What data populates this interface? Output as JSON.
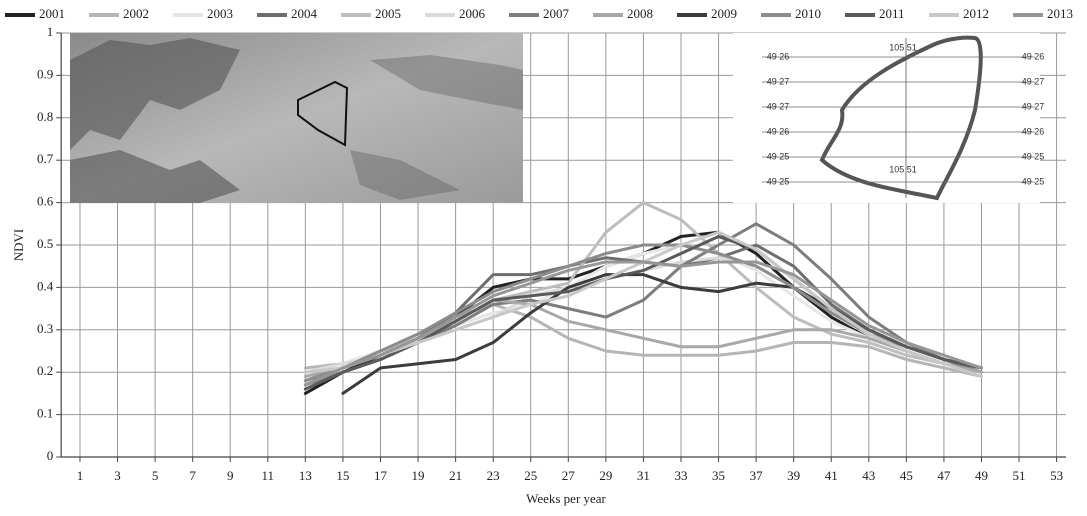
{
  "chart_data": {
    "type": "line",
    "x_label": "Weeks per year",
    "y_label": "NDVI",
    "x": [
      13,
      15,
      17,
      19,
      21,
      23,
      25,
      27,
      29,
      31,
      33,
      35,
      37,
      39,
      41,
      43,
      45,
      47,
      49
    ],
    "series": [
      {
        "name": "2001",
        "color": "#222222",
        "values": [
          0.15,
          0.2,
          0.24,
          0.28,
          0.33,
          0.4,
          0.42,
          0.42,
          0.45,
          0.48,
          0.52,
          0.53,
          0.48,
          0.4,
          0.33,
          0.28,
          0.25,
          0.22,
          null
        ]
      },
      {
        "name": "2002",
        "color": "#b5b5b5",
        "values": [
          0.21,
          0.22,
          0.25,
          0.29,
          0.33,
          0.36,
          0.33,
          0.28,
          0.25,
          0.24,
          0.24,
          0.24,
          0.25,
          0.27,
          0.27,
          0.26,
          0.23,
          0.21,
          0.19
        ]
      },
      {
        "name": "2003",
        "color": "#e6e6e6",
        "values": [
          0.2,
          0.22,
          0.25,
          0.28,
          0.31,
          0.34,
          0.36,
          0.4,
          0.45,
          0.48,
          0.5,
          0.48,
          0.44,
          0.38,
          0.32,
          0.28,
          0.25,
          0.22,
          0.2
        ]
      },
      {
        "name": "2004",
        "color": "#6e6e6e",
        "values": [
          0.18,
          0.21,
          0.24,
          0.28,
          0.34,
          0.43,
          0.43,
          0.45,
          0.47,
          0.46,
          0.45,
          0.47,
          0.5,
          0.45,
          0.36,
          0.3,
          0.26,
          0.23,
          0.21
        ]
      },
      {
        "name": "2005",
        "color": "#bdbdbd",
        "values": [
          0.2,
          0.21,
          0.25,
          0.28,
          0.32,
          0.37,
          0.39,
          0.41,
          0.53,
          0.6,
          0.56,
          0.48,
          0.4,
          0.33,
          0.29,
          0.27,
          0.24,
          0.22,
          0.2
        ]
      },
      {
        "name": "2006",
        "color": "#dadada",
        "values": [
          0.2,
          0.22,
          0.24,
          0.27,
          0.3,
          0.33,
          0.38,
          0.4,
          0.42,
          0.44,
          0.46,
          0.47,
          0.45,
          0.4,
          0.34,
          0.29,
          0.25,
          0.22,
          0.2
        ]
      },
      {
        "name": "2007",
        "color": "#7d7d7d",
        "values": [
          0.17,
          0.2,
          0.23,
          0.27,
          0.31,
          0.36,
          0.37,
          0.35,
          0.33,
          0.37,
          0.45,
          0.5,
          0.55,
          0.5,
          0.42,
          0.33,
          0.27,
          0.23,
          0.2
        ]
      },
      {
        "name": "2008",
        "color": "#a8a8a8",
        "values": [
          0.19,
          0.21,
          0.24,
          0.28,
          0.32,
          0.37,
          0.36,
          0.32,
          0.3,
          0.28,
          0.26,
          0.26,
          0.28,
          0.3,
          0.3,
          0.28,
          0.25,
          0.22,
          0.2
        ]
      },
      {
        "name": "2009",
        "color": "#3c3c3c",
        "values": [
          null,
          0.15,
          0.21,
          0.22,
          0.23,
          0.27,
          0.34,
          0.4,
          0.43,
          0.43,
          0.4,
          0.39,
          0.41,
          0.4,
          0.35,
          0.3,
          0.26,
          0.23,
          0.21
        ]
      },
      {
        "name": "2010",
        "color": "#8c8c8c",
        "values": [
          0.18,
          0.21,
          0.25,
          0.29,
          0.34,
          0.39,
          0.42,
          0.45,
          0.48,
          0.5,
          0.5,
          0.48,
          0.45,
          0.4,
          0.34,
          0.29,
          0.26,
          0.23,
          0.21
        ]
      },
      {
        "name": "2011",
        "color": "#5a5a5a",
        "values": [
          0.16,
          0.2,
          0.23,
          0.27,
          0.32,
          0.37,
          0.38,
          0.39,
          0.42,
          0.44,
          0.48,
          0.52,
          0.49,
          0.42,
          0.35,
          0.3,
          0.26,
          0.23,
          0.21
        ]
      },
      {
        "name": "2012",
        "color": "#c8c8c8",
        "values": [
          0.2,
          0.21,
          0.24,
          0.27,
          0.3,
          0.33,
          0.36,
          0.38,
          0.42,
          0.46,
          0.5,
          0.53,
          0.49,
          0.42,
          0.35,
          0.29,
          0.25,
          0.22,
          0.19
        ]
      },
      {
        "name": "2013",
        "color": "#969696",
        "values": [
          0.17,
          0.21,
          0.24,
          0.28,
          0.33,
          0.38,
          0.41,
          0.44,
          0.46,
          0.46,
          0.45,
          0.46,
          0.46,
          0.43,
          0.37,
          0.31,
          0.27,
          0.24,
          0.21
        ]
      }
    ],
    "xlim": [
      0,
      53.5
    ],
    "xticks": [
      1,
      3,
      5,
      7,
      9,
      11,
      13,
      15,
      17,
      19,
      21,
      23,
      25,
      27,
      29,
      31,
      33,
      35,
      37,
      39,
      41,
      43,
      45,
      47,
      49,
      51,
      53
    ],
    "ylim": [
      0,
      1
    ],
    "yticks": [
      0,
      0.1,
      0.2,
      0.3,
      0.4,
      0.5,
      0.6,
      0.7,
      0.8,
      0.9,
      1
    ],
    "grid": true,
    "legend": "top",
    "inset_map": {
      "top_label": "105 51",
      "bottom_label": "105 51",
      "left_labels": [
        "49 26",
        "49 27",
        "49 27",
        "49 26",
        "49 25",
        "49 25"
      ],
      "right_labels": [
        "49 26",
        "49 27",
        "49 27",
        "49 26",
        "49 25",
        "49 25"
      ]
    }
  }
}
